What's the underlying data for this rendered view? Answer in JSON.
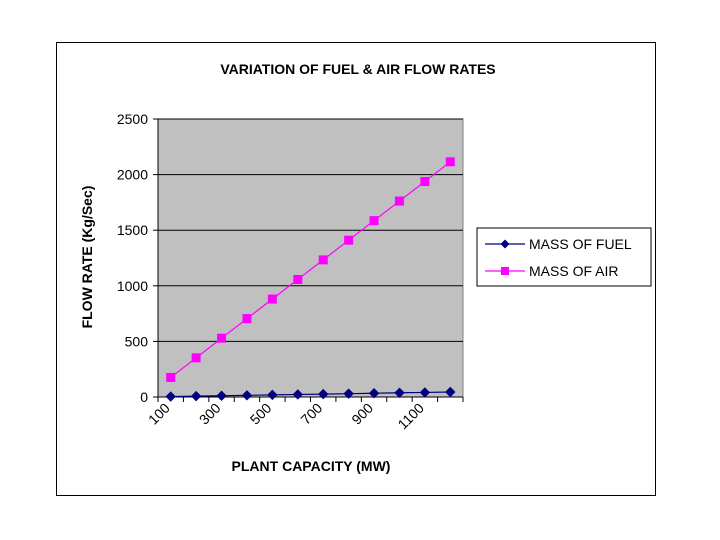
{
  "chart_data": {
    "type": "line",
    "title": "VARIATION OF FUEL & AIR FLOW RATES",
    "xlabel": "PLANT CAPACITY (MW)",
    "ylabel": "FLOW RATE (Kg/Sec)",
    "x": [
      100,
      200,
      300,
      400,
      500,
      600,
      700,
      800,
      900,
      1000,
      1100,
      1200
    ],
    "x_tick_labels": [
      "100",
      "300",
      "500",
      "700",
      "900",
      "1100"
    ],
    "ylim": [
      0,
      2500
    ],
    "y_ticks": [
      0,
      500,
      1000,
      1500,
      2000,
      2500
    ],
    "grid": true,
    "legend_position": "right",
    "plot_background": "#C0C0C0",
    "series": [
      {
        "name": "MASS OF FUEL",
        "color": "#000080",
        "marker": "diamond",
        "values": [
          4,
          8,
          11,
          15,
          19,
          23,
          26,
          30,
          34,
          38,
          41,
          45
        ]
      },
      {
        "name": "MASS OF AIR",
        "color": "#FF00FF",
        "marker": "square",
        "values": [
          176,
          352,
          529,
          705,
          881,
          1057,
          1233,
          1410,
          1586,
          1762,
          1938,
          2115
        ]
      }
    ]
  }
}
